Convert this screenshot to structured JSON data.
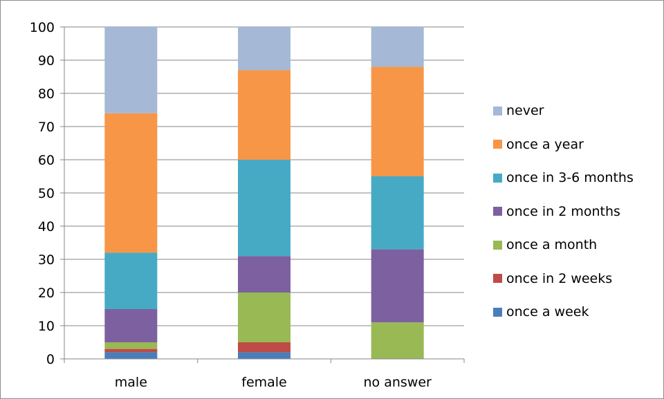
{
  "chart_data": {
    "type": "bar",
    "stacked": true,
    "categories": [
      "male",
      "female",
      "no answer"
    ],
    "series": [
      {
        "name": "once a week",
        "color": "#4a7ebb",
        "values": [
          2,
          2,
          0
        ]
      },
      {
        "name": "once in 2 weeks",
        "color": "#be4b48",
        "values": [
          1,
          3,
          0
        ]
      },
      {
        "name": "once a month",
        "color": "#98b954",
        "values": [
          2,
          15,
          11
        ]
      },
      {
        "name": "once in 2 months",
        "color": "#7d60a0",
        "values": [
          10,
          11,
          22
        ]
      },
      {
        "name": "once in 3-6 months",
        "color": "#46aac5",
        "values": [
          17,
          29,
          22
        ]
      },
      {
        "name": "once a year",
        "color": "#f79646",
        "values": [
          42,
          27,
          33
        ]
      },
      {
        "name": "never",
        "color": "#a5b8d6",
        "values": [
          26,
          13,
          12
        ]
      }
    ],
    "yticks": [
      "0",
      "10",
      "20",
      "30",
      "40",
      "50",
      "60",
      "70",
      "80",
      "90",
      "100"
    ],
    "ylim": [
      0,
      100
    ],
    "grid": true,
    "legend_position": "right"
  }
}
